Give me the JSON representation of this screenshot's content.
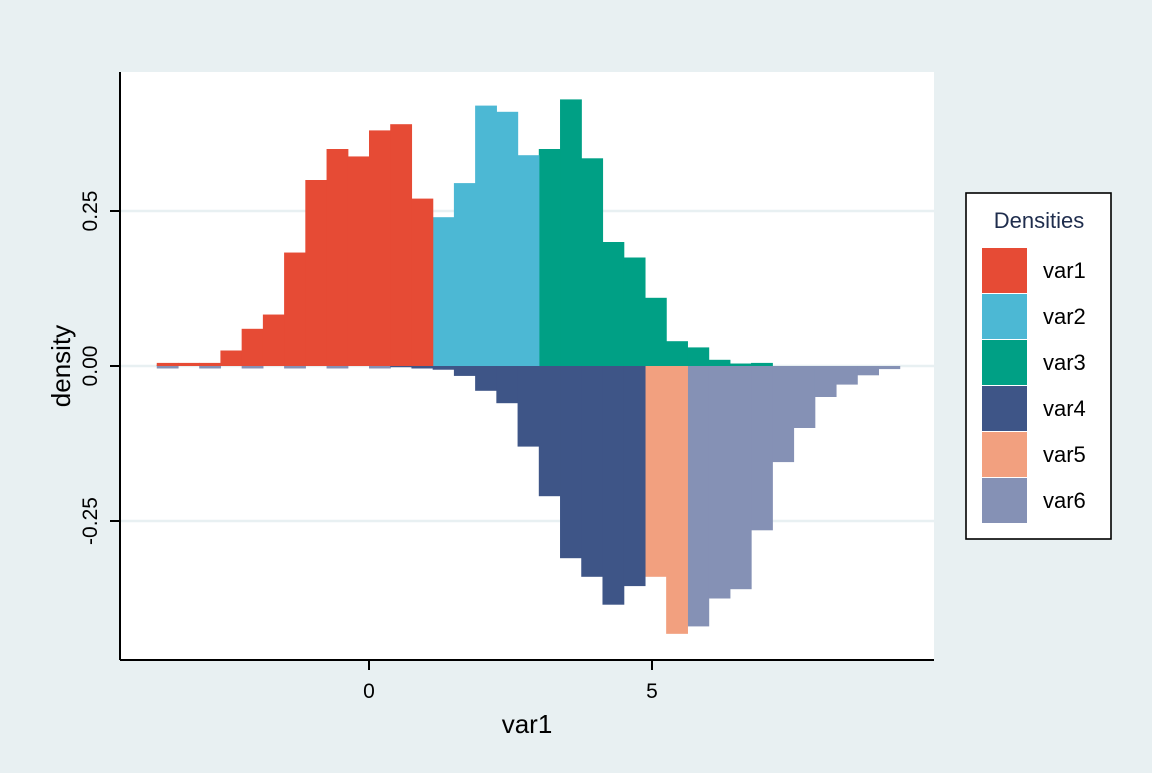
{
  "chart_data": {
    "type": "bar",
    "xlabel": "var1",
    "ylabel": "density",
    "xlim": [
      -4.4,
      10.0
    ],
    "ylim": [
      -0.47,
      0.47
    ],
    "bin_width": 0.375,
    "x_ticks": [
      {
        "value": 0,
        "label": "0"
      },
      {
        "value": 5,
        "label": "5"
      }
    ],
    "y_ticks": [
      {
        "value": 0.25,
        "label": "0.25"
      },
      {
        "value": 0.0,
        "label": "0.00"
      },
      {
        "value": -0.25,
        "label": "-0.25"
      }
    ],
    "grid": true,
    "legend": {
      "title": "Densities",
      "placement": "right"
    },
    "series": [
      {
        "name": "var6",
        "color": "#8591b5",
        "bins": [
          [
            -3.75,
            -0.004
          ],
          [
            -3.0,
            -0.004
          ],
          [
            -2.25,
            -0.004
          ],
          [
            -1.5,
            -0.004
          ],
          [
            -0.75,
            -0.004
          ],
          [
            0.0,
            -0.004
          ],
          [
            0.75,
            -0.004
          ],
          [
            1.5,
            -0.006
          ],
          [
            2.25,
            -0.01
          ],
          [
            2.625,
            -0.015
          ],
          [
            3.0,
            -0.018
          ],
          [
            3.375,
            -0.018
          ],
          [
            3.75,
            -0.02
          ],
          [
            4.125,
            -0.03
          ],
          [
            4.5,
            -0.055
          ],
          [
            4.875,
            -0.18
          ],
          [
            5.25,
            -0.3
          ],
          [
            5.625,
            -0.42
          ],
          [
            6.0,
            -0.375
          ],
          [
            6.375,
            -0.36
          ],
          [
            6.75,
            -0.265
          ],
          [
            7.125,
            -0.155
          ],
          [
            7.5,
            -0.1
          ],
          [
            7.875,
            -0.05
          ],
          [
            8.25,
            -0.03
          ],
          [
            8.625,
            -0.015
          ],
          [
            9.0,
            -0.005
          ]
        ]
      },
      {
        "name": "var5",
        "color": "#f2a07f",
        "bins": [
          [
            1.125,
            -0.002
          ],
          [
            1.5,
            -0.004
          ],
          [
            1.875,
            -0.008
          ],
          [
            2.25,
            -0.03
          ],
          [
            2.625,
            -0.04
          ],
          [
            3.0,
            -0.07
          ],
          [
            3.375,
            -0.115
          ],
          [
            3.75,
            -0.165
          ],
          [
            4.125,
            -0.22
          ],
          [
            4.5,
            -0.285
          ],
          [
            4.875,
            -0.34
          ],
          [
            5.25,
            -0.432
          ]
        ]
      },
      {
        "name": "var4",
        "color": "#3e5587",
        "bins": [
          [
            0.375,
            -0.002
          ],
          [
            0.75,
            -0.004
          ],
          [
            1.125,
            -0.006
          ],
          [
            1.5,
            -0.016
          ],
          [
            1.875,
            -0.04
          ],
          [
            2.25,
            -0.06
          ],
          [
            2.625,
            -0.13
          ],
          [
            3.0,
            -0.21
          ],
          [
            3.375,
            -0.31
          ],
          [
            3.75,
            -0.34
          ],
          [
            4.125,
            -0.385
          ],
          [
            4.5,
            -0.355
          ]
        ]
      },
      {
        "name": "var3",
        "color": "#00a085",
        "bins": [
          [
            -3.75,
            0.002
          ],
          [
            -3.0,
            0.002
          ],
          [
            -2.25,
            0.002
          ],
          [
            -1.5,
            0.002
          ],
          [
            -0.75,
            0.002
          ],
          [
            0.0,
            0.007
          ],
          [
            0.375,
            0.009
          ],
          [
            0.75,
            0.022
          ],
          [
            1.125,
            0.06
          ],
          [
            1.5,
            0.13
          ],
          [
            1.875,
            0.195
          ],
          [
            2.25,
            0.31
          ],
          [
            2.625,
            0.325
          ],
          [
            3.0,
            0.35
          ],
          [
            3.375,
            0.43
          ],
          [
            3.75,
            0.335
          ],
          [
            4.125,
            0.2
          ],
          [
            4.5,
            0.175
          ],
          [
            4.875,
            0.11
          ],
          [
            5.25,
            0.04
          ],
          [
            5.625,
            0.03
          ],
          [
            6.0,
            0.01
          ],
          [
            6.375,
            0.004
          ],
          [
            6.75,
            0.005
          ]
        ]
      },
      {
        "name": "var2",
        "color": "#4cb8d4",
        "bins": [
          [
            -3.75,
            0.002
          ],
          [
            -1.5,
            0.002
          ],
          [
            -0.75,
            0.007
          ],
          [
            -0.375,
            0.02
          ],
          [
            0.0,
            0.04
          ],
          [
            0.375,
            0.09
          ],
          [
            0.75,
            0.17
          ],
          [
            1.125,
            0.24
          ],
          [
            1.5,
            0.295
          ],
          [
            1.875,
            0.42
          ],
          [
            2.25,
            0.41
          ],
          [
            2.625,
            0.34
          ]
        ]
      },
      {
        "name": "var1",
        "color": "#e64b35",
        "bins": [
          [
            -3.75,
            0.005
          ],
          [
            -3.375,
            0.005
          ],
          [
            -3.0,
            0.005
          ],
          [
            -2.625,
            0.025
          ],
          [
            -2.25,
            0.06
          ],
          [
            -1.875,
            0.083
          ],
          [
            -1.5,
            0.183
          ],
          [
            -1.125,
            0.3
          ],
          [
            -0.75,
            0.35
          ],
          [
            -0.375,
            0.338
          ],
          [
            0.0,
            0.38
          ],
          [
            0.375,
            0.39
          ],
          [
            0.75,
            0.27
          ]
        ]
      }
    ]
  }
}
